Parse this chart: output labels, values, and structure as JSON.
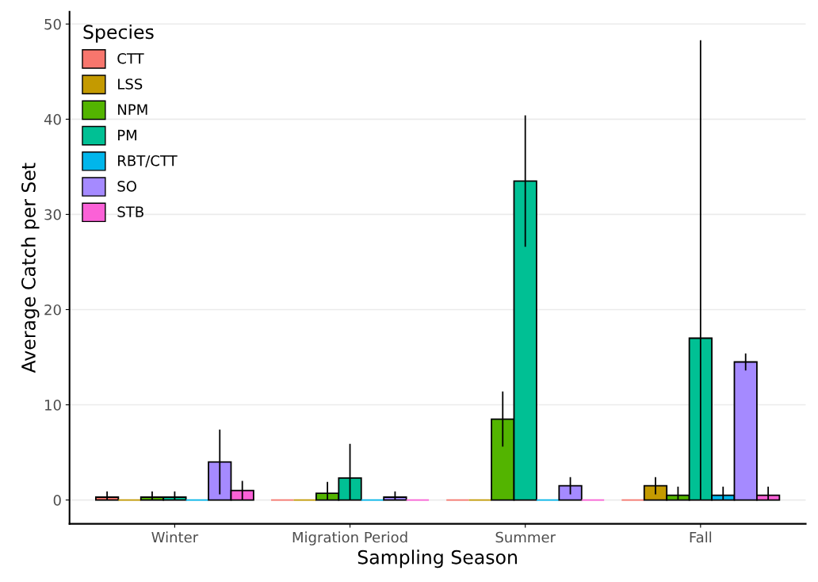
{
  "chart_data": {
    "type": "bar",
    "xlabel": "Sampling Season",
    "ylabel": "Average Catch per Set",
    "legend_title": "Species",
    "legend": "top left",
    "grid": "y",
    "categories": [
      "Winter",
      "Migration Period",
      "Summer",
      "Fall"
    ],
    "ylim": [
      -2.5,
      51.3
    ],
    "yticks": [
      0,
      10,
      20,
      30,
      40,
      50
    ],
    "series": [
      {
        "name": "CTT",
        "color": "#f8766d",
        "values": [
          0.3,
          0,
          0,
          0
        ],
        "errors": [
          [
            0,
            0.9
          ],
          null,
          null,
          null
        ]
      },
      {
        "name": "LSS",
        "color": "#c49a00",
        "values": [
          0,
          0,
          0,
          1.5
        ],
        "errors": [
          null,
          null,
          null,
          0.9
        ]
      },
      {
        "name": "NPM",
        "color": "#53b400",
        "values": [
          0.3,
          0.7,
          8.5,
          0.5
        ],
        "errors": [
          [
            0,
            0.9
          ],
          [
            0,
            1.9
          ],
          2.9,
          [
            0,
            1.4
          ]
        ]
      },
      {
        "name": "PM",
        "color": "#00c094",
        "values": [
          0.3,
          2.3,
          33.5,
          17
        ],
        "errors": [
          [
            0,
            0.9
          ],
          [
            0,
            5.9
          ],
          6.9,
          [
            0,
            48.3
          ]
        ]
      },
      {
        "name": "RBT/CTT",
        "color": "#00b6eb",
        "values": [
          0,
          0,
          0,
          0.5
        ],
        "errors": [
          null,
          null,
          null,
          [
            0,
            1.4
          ]
        ]
      },
      {
        "name": "SO",
        "color": "#a58aff",
        "values": [
          4.0,
          0.3,
          1.5,
          14.5
        ],
        "errors": [
          3.4,
          [
            0,
            0.9
          ],
          0.9,
          0.9
        ]
      },
      {
        "name": "STB",
        "color": "#fb61d7",
        "values": [
          1.0,
          0,
          0,
          0.5
        ],
        "errors": [
          [
            0,
            2.0
          ],
          null,
          null,
          [
            0,
            1.4
          ]
        ]
      }
    ]
  }
}
